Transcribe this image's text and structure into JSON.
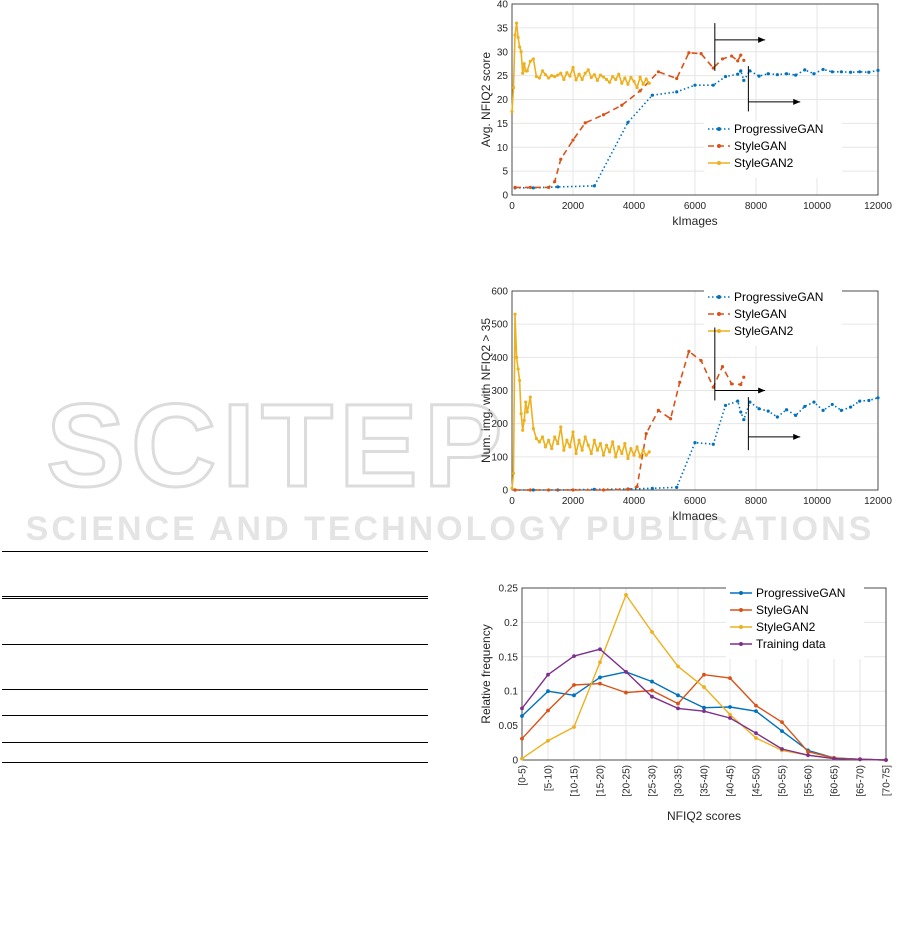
{
  "chart_data": [
    {
      "type": "line",
      "xlabel": "kImages",
      "ylabel": "Avg. NFIQ2 score",
      "xlim": [
        0,
        12000
      ],
      "ylim": [
        0,
        40
      ],
      "xticks": [
        0,
        2000,
        4000,
        6000,
        8000,
        10000,
        12000
      ],
      "yticks": [
        0,
        5,
        10,
        15,
        20,
        25,
        30,
        35,
        40
      ],
      "grid": true,
      "legend_position": "bottom-right",
      "series": [
        {
          "name": "ProgressiveGAN",
          "color": "#0072BD",
          "style": "dotted",
          "x": [
            100,
            700,
            1500,
            2700,
            3800,
            4600,
            5400,
            6000,
            6600,
            7000,
            7400,
            7500,
            7600,
            7800,
            8100,
            8400,
            8700,
            9000,
            9300,
            9600,
            9900,
            10200,
            10500,
            10800,
            11100,
            11400,
            11700,
            12000
          ],
          "y": [
            1.5,
            1.5,
            1.7,
            1.9,
            15.2,
            20.9,
            21.6,
            23,
            23,
            24.8,
            25.3,
            26,
            24,
            26,
            24.9,
            25.4,
            25.2,
            25.4,
            25.1,
            26.2,
            25.4,
            26.3,
            25.8,
            25.8,
            25.7,
            25.8,
            25.7,
            26.1
          ]
        },
        {
          "name": "StyleGAN",
          "color": "#D95319",
          "style": "dashed",
          "x": [
            100,
            600,
            1200,
            1400,
            1600,
            2000,
            2400,
            3000,
            3600,
            4200,
            4800,
            5400,
            5800,
            6200,
            6600,
            6900,
            7200,
            7400,
            7500,
            7600
          ],
          "y": [
            1.6,
            1.6,
            1.6,
            2.8,
            7.5,
            11.5,
            15.1,
            16.8,
            18.8,
            21.8,
            25.8,
            24.4,
            29.8,
            29.6,
            26.6,
            28.5,
            29.1,
            28.1,
            29.3,
            28.2
          ]
        },
        {
          "name": "StyleGAN2",
          "color": "#EDB120",
          "style": "solid",
          "x": [
            0,
            50,
            100,
            150,
            200,
            250,
            300,
            350,
            400,
            450,
            500,
            600,
            700,
            800,
            900,
            1000,
            1100,
            1200,
            1300,
            1400,
            1500,
            1600,
            1700,
            1800,
            1900,
            2000,
            2100,
            2200,
            2300,
            2400,
            2500,
            2600,
            2700,
            2800,
            2900,
            3000,
            3100,
            3200,
            3300,
            3400,
            3500,
            3600,
            3700,
            3800,
            3900,
            4000,
            4100,
            4200,
            4300,
            4400,
            4500
          ],
          "y": [
            17.5,
            22.5,
            33.5,
            36,
            33,
            31,
            30,
            25.5,
            27.5,
            26,
            26,
            28,
            28.5,
            24.8,
            24.5,
            26,
            25.2,
            24.5,
            25,
            24.8,
            25.1,
            25.5,
            24.2,
            25.6,
            24.9,
            26.7,
            24.1,
            25.3,
            24.2,
            25.5,
            26.2,
            24.6,
            25.2,
            24,
            25.1,
            24.7,
            24.2,
            23.6,
            24.8,
            24.2,
            25.3,
            23.4,
            24.5,
            23.2,
            24.6,
            23.8,
            22.5,
            24.7,
            23.2,
            24.3,
            23.4
          ]
        }
      ]
    },
    {
      "type": "line",
      "xlabel": "kImages",
      "ylabel": "Num. img. with NFIQ2 > 35",
      "xlim": [
        0,
        12000
      ],
      "ylim": [
        0,
        600
      ],
      "xticks": [
        0,
        2000,
        4000,
        6000,
        8000,
        10000,
        12000
      ],
      "yticks": [
        0,
        100,
        200,
        300,
        400,
        500,
        600
      ],
      "grid": true,
      "legend_position": "top-right",
      "series": [
        {
          "name": "ProgressiveGAN",
          "color": "#0072BD",
          "style": "dotted",
          "x": [
            100,
            700,
            1500,
            2700,
            3800,
            4600,
            5400,
            6000,
            6600,
            7000,
            7400,
            7500,
            7600,
            7800,
            8100,
            8400,
            8700,
            9000,
            9300,
            9600,
            9900,
            10200,
            10500,
            10800,
            11100,
            11400,
            11700,
            12000
          ],
          "y": [
            0,
            0,
            0,
            2,
            3,
            5,
            8,
            143,
            138,
            255,
            268,
            235,
            212,
            265,
            245,
            238,
            220,
            242,
            225,
            252,
            265,
            240,
            258,
            240,
            250,
            268,
            270,
            278
          ]
        },
        {
          "name": "StyleGAN",
          "color": "#D95319",
          "style": "dashed",
          "x": [
            100,
            600,
            1200,
            2000,
            3000,
            3800,
            4100,
            4400,
            4800,
            5200,
            5500,
            5800,
            6200,
            6600,
            6900,
            7200,
            7500,
            7600
          ],
          "y": [
            0,
            0,
            0,
            0,
            0,
            2,
            10,
            170,
            240,
            215,
            325,
            418,
            390,
            310,
            372,
            320,
            318,
            340
          ]
        },
        {
          "name": "StyleGAN2",
          "color": "#EDB120",
          "style": "solid",
          "x": [
            0,
            50,
            100,
            150,
            200,
            250,
            300,
            350,
            400,
            450,
            500,
            600,
            700,
            800,
            900,
            1000,
            1100,
            1200,
            1300,
            1400,
            1500,
            1600,
            1700,
            1800,
            1900,
            2000,
            2100,
            2200,
            2300,
            2400,
            2500,
            2600,
            2700,
            2800,
            2900,
            3000,
            3100,
            3200,
            3300,
            3400,
            3500,
            3600,
            3700,
            3800,
            3900,
            4000,
            4100,
            4200,
            4300,
            4400,
            4500
          ],
          "y": [
            5,
            50,
            530,
            400,
            365,
            330,
            230,
            180,
            210,
            265,
            235,
            280,
            185,
            155,
            145,
            160,
            130,
            150,
            125,
            160,
            140,
            190,
            120,
            150,
            130,
            175,
            110,
            150,
            120,
            160,
            135,
            110,
            150,
            120,
            140,
            105,
            135,
            115,
            145,
            100,
            130,
            110,
            140,
            95,
            125,
            105,
            130,
            100,
            120,
            105,
            115
          ]
        }
      ]
    },
    {
      "type": "line",
      "xlabel": "NFIQ2 scores",
      "ylabel": "Relative frequency",
      "ylim": [
        0,
        0.25
      ],
      "yticks": [
        0,
        0.05,
        0.1,
        0.15,
        0.2,
        0.25
      ],
      "grid": true,
      "legend_position": "top-right",
      "categories": [
        "[0-5)",
        "[5-10)",
        "[10-15)",
        "[15-20)",
        "[20-25)",
        "[25-30)",
        "[30-35)",
        "[35-40)",
        "[40-45)",
        "[45-50)",
        "[50-55)",
        "[55-60)",
        "[60-65)",
        "[65-70)",
        "[70-75]"
      ],
      "series": [
        {
          "name": "ProgressiveGAN",
          "color": "#0072BD",
          "values": [
            0.064,
            0.1,
            0.094,
            0.12,
            0.128,
            0.114,
            0.094,
            0.076,
            0.077,
            0.071,
            0.042,
            0.014,
            0.003,
            0.001,
            0.0
          ]
        },
        {
          "name": "StyleGAN",
          "color": "#D95319",
          "values": [
            0.031,
            0.072,
            0.109,
            0.111,
            0.098,
            0.101,
            0.082,
            0.124,
            0.119,
            0.079,
            0.055,
            0.012,
            0.003,
            0.001,
            0.0
          ]
        },
        {
          "name": "StyleGAN2",
          "color": "#EDB120",
          "values": [
            0.002,
            0.028,
            0.048,
            0.142,
            0.24,
            0.186,
            0.136,
            0.106,
            0.066,
            0.032,
            0.014,
            0.007,
            0.002,
            0.001,
            0.0
          ]
        },
        {
          "name": "Training data",
          "color": "#7E2F8E",
          "values": [
            0.075,
            0.124,
            0.151,
            0.161,
            0.128,
            0.092,
            0.075,
            0.071,
            0.061,
            0.039,
            0.016,
            0.007,
            0.002,
            0.001,
            0.0
          ]
        }
      ]
    }
  ],
  "watermark": {
    "text": "SCITEPRESS",
    "subtext": "SCIENCE AND TECHNOLOGY PUBLICATIONS"
  }
}
